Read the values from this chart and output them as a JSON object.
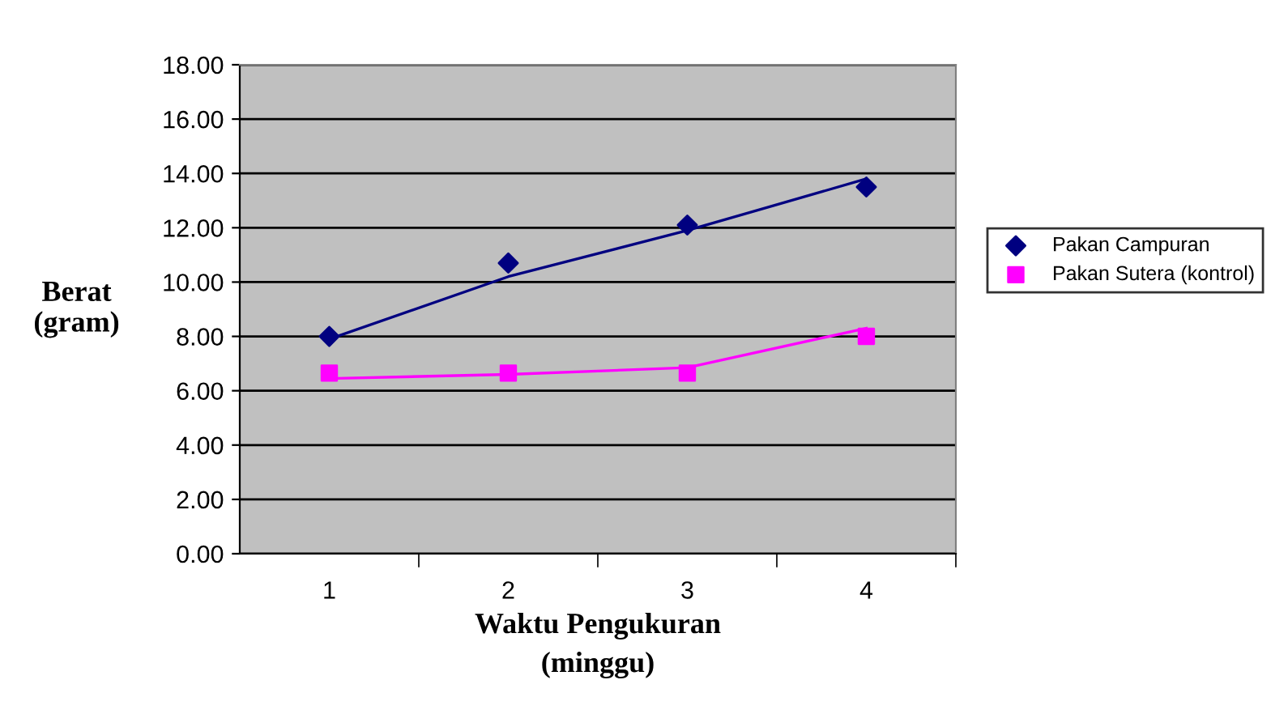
{
  "chart_data": {
    "type": "scatter",
    "xlabel": "Waktu Pengukuran\n(minggu)",
    "ylabel": "Berat\n(gram)",
    "categories": [
      "1",
      "2",
      "3",
      "4"
    ],
    "series": [
      {
        "name": "Pakan Campuran",
        "color": "#000080",
        "marker": "diamond",
        "values": [
          8.0,
          10.7,
          12.1,
          13.5
        ]
      },
      {
        "name": "Pakan Sutera (kontrol)",
        "color": "#ff00ff",
        "marker": "square",
        "values": [
          6.65,
          6.65,
          6.65,
          8.0
        ]
      },
      {
        "type": "line",
        "color": "#000080",
        "values": [
          7.9,
          10.2,
          11.9,
          13.8
        ]
      },
      {
        "type": "line",
        "color": "#ff00ff",
        "values": [
          6.45,
          6.6,
          6.85,
          8.3
        ]
      }
    ],
    "ylim": [
      0,
      18
    ],
    "yticks": [
      {
        "value": 0,
        "label": "0.00"
      },
      {
        "value": 2,
        "label": "2.00"
      },
      {
        "value": 4,
        "label": "4.00"
      },
      {
        "value": 6,
        "label": "6.00"
      },
      {
        "value": 8,
        "label": "8.00"
      },
      {
        "value": 10,
        "label": "10.00"
      },
      {
        "value": 12,
        "label": "12.00"
      },
      {
        "value": 14,
        "label": "14.00"
      },
      {
        "value": 16,
        "label": "16.00"
      },
      {
        "value": 18,
        "label": "18.00"
      }
    ],
    "grid": "y",
    "legend": "right"
  }
}
